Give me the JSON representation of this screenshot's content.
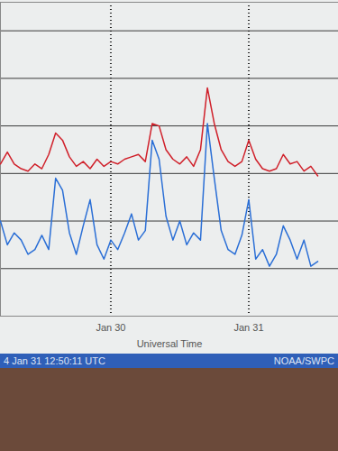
{
  "chart_data": {
    "type": "line",
    "x_label": "Universal Time",
    "annotations": [
      "4 Jan 31 12:50:11 UTC",
      "NOAA/SWPC"
    ],
    "x": [
      29.2,
      29.25,
      29.3,
      29.35,
      29.4,
      29.45,
      29.5,
      29.55,
      29.6,
      29.65,
      29.7,
      29.75,
      29.8,
      29.85,
      29.9,
      29.95,
      30.0,
      30.05,
      30.1,
      30.15,
      30.2,
      30.25,
      30.3,
      30.35,
      30.4,
      30.45,
      30.5,
      30.55,
      30.6,
      30.65,
      30.7,
      30.75,
      30.8,
      30.85,
      30.9,
      30.95,
      31.0,
      31.05,
      31.1,
      31.15,
      31.2,
      31.25,
      31.3,
      31.35,
      31.4,
      31.45,
      31.5
    ],
    "series": [
      {
        "color": "#d0202a",
        "values": [
          3.2,
          3.45,
          3.2,
          3.1,
          3.05,
          3.2,
          3.1,
          3.4,
          3.85,
          3.7,
          3.35,
          3.15,
          3.25,
          3.1,
          3.3,
          3.15,
          3.25,
          3.2,
          3.3,
          3.35,
          3.4,
          3.25,
          4.05,
          4.0,
          3.5,
          3.3,
          3.2,
          3.35,
          3.15,
          3.5,
          4.8,
          4.05,
          3.5,
          3.25,
          3.15,
          3.25,
          3.7,
          3.3,
          3.1,
          3.05,
          3.1,
          3.4,
          3.2,
          3.25,
          3.05,
          3.15,
          2.95
        ]
      },
      {
        "color": "#2b6fd6",
        "values": [
          2.0,
          1.5,
          1.75,
          1.6,
          1.3,
          1.4,
          1.7,
          1.4,
          2.9,
          2.65,
          1.75,
          1.3,
          1.9,
          2.45,
          1.5,
          1.2,
          1.6,
          1.4,
          1.75,
          2.15,
          1.6,
          1.8,
          3.7,
          3.3,
          2.1,
          1.6,
          2.0,
          1.5,
          1.75,
          1.6,
          4.05,
          2.9,
          1.8,
          1.4,
          1.3,
          1.7,
          2.45,
          1.2,
          1.4,
          1.05,
          1.3,
          1.9,
          1.6,
          1.2,
          1.6,
          1.05,
          1.15
        ]
      }
    ],
    "xlim": [
      29.2,
      31.65
    ],
    "xticks": [
      {
        "value": 30,
        "label": "Jan 30"
      },
      {
        "value": 31,
        "label": "Jan 31"
      }
    ],
    "ylim": [
      0,
      6.6
    ],
    "yticks": [
      1,
      2,
      3,
      4,
      5,
      6
    ],
    "grid": true,
    "tick_labels": "x"
  }
}
